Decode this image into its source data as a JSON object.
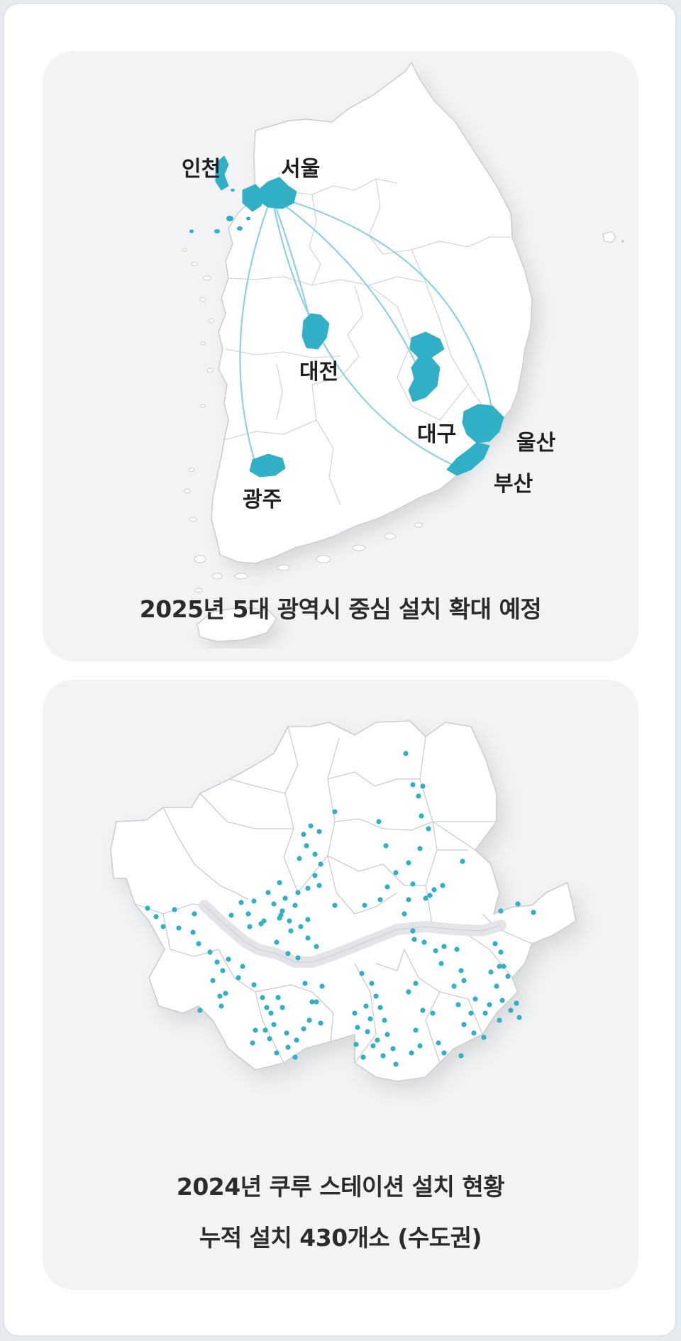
{
  "korea_map": {
    "caption": "2025년 5대 광역시 중심 설치 확대 예정",
    "hub_city": "서울",
    "cities": [
      {
        "id": "incheon",
        "label": "인천"
      },
      {
        "id": "seoul",
        "label": "서울"
      },
      {
        "id": "daejeon",
        "label": "대전"
      },
      {
        "id": "daegu",
        "label": "대구"
      },
      {
        "id": "ulsan",
        "label": "울산"
      },
      {
        "id": "busan",
        "label": "부산"
      },
      {
        "id": "gwangju",
        "label": "광주"
      }
    ],
    "routes_from_seoul_to": [
      "대전",
      "광주",
      "대구",
      "울산",
      "부산"
    ]
  },
  "seoul_map": {
    "caption_line1": "2024년 쿠루 스테이션 설치 현황",
    "caption_line2": "누적 설치 430개소 (수도권)",
    "installed_count": 430
  },
  "colors": {
    "highlight": "#31afc6",
    "route": "#8fd2df",
    "land": "#ffffff",
    "border": "#c9ccd1",
    "card_bg": "#f2f3f5",
    "river": "#e2e4e7"
  }
}
